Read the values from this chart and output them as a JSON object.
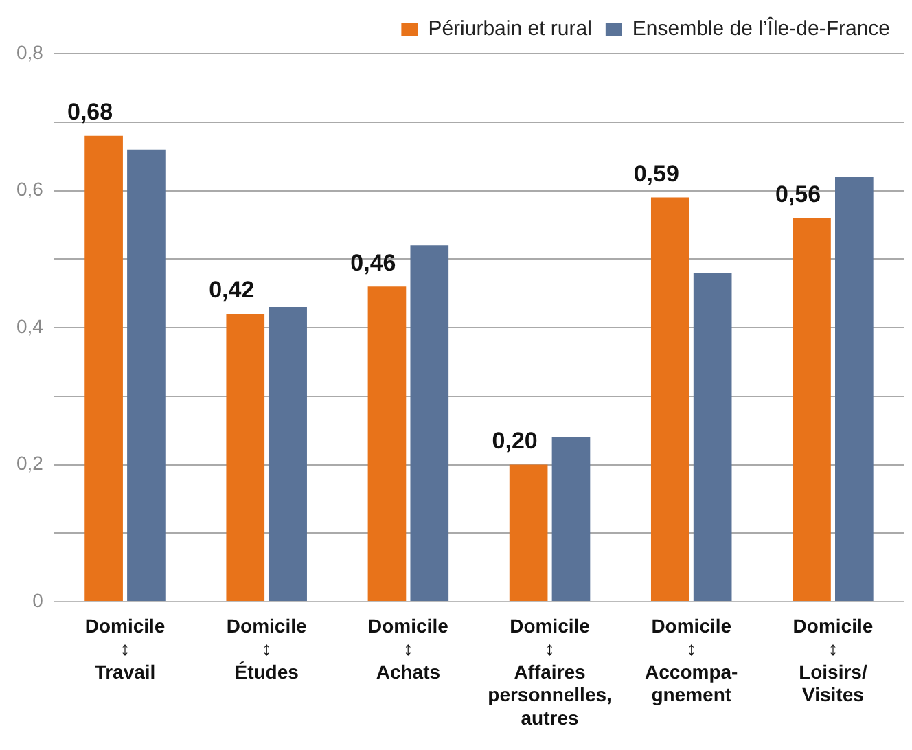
{
  "chart_data": {
    "type": "bar",
    "categories": [
      "Domicile\n↕\nTravail",
      "Domicile\n↕\nÉtudes",
      "Domicile\n↕\nAchats",
      "Domicile\n↕\nAffaires\npersonnelles,\nautres",
      "Domicile\n↕\nAccompa-\ngnement",
      "Domicile\n↕\nLoisirs/\nVisites"
    ],
    "series": [
      {
        "name": "Périurbain et rural",
        "color": "#e8731a",
        "values": [
          0.68,
          0.42,
          0.46,
          0.2,
          0.59,
          0.56
        ],
        "value_labels": [
          "0,68",
          "0,42",
          "0,46",
          "0,20",
          "0,59",
          "0,56"
        ]
      },
      {
        "name": "Ensemble de l’Île-de-France",
        "color": "#5a7398",
        "values": [
          0.66,
          0.43,
          0.52,
          0.24,
          0.48,
          0.62
        ]
      }
    ],
    "ylim": [
      0,
      0.8
    ],
    "yticks": [
      {
        "value": 0,
        "label": "0"
      },
      {
        "value": 0.1,
        "label": null
      },
      {
        "value": 0.2,
        "label": "0,2"
      },
      {
        "value": 0.3,
        "label": null
      },
      {
        "value": 0.4,
        "label": "0,4"
      },
      {
        "value": 0.5,
        "label": null
      },
      {
        "value": 0.6,
        "label": "0,6"
      },
      {
        "value": 0.7,
        "label": null
      },
      {
        "value": 0.8,
        "label": "0,8"
      }
    ],
    "grid": "y",
    "legend": "top right"
  }
}
